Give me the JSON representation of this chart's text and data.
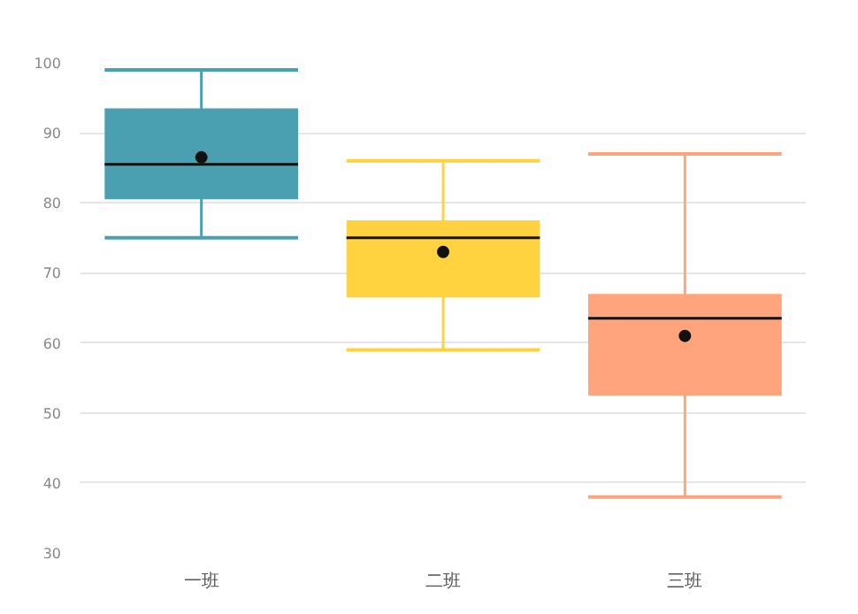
{
  "chart_data": {
    "type": "box",
    "categories": [
      "一班",
      "二班",
      "三班"
    ],
    "colors": [
      "#4a9fb0",
      "#ffd23f",
      "#ffa47c"
    ],
    "boxes": [
      {
        "low": 75,
        "q1": 80.5,
        "median": 85.5,
        "q3": 93.5,
        "high": 99,
        "mean": 86.5
      },
      {
        "low": 59,
        "q1": 66.5,
        "median": 75,
        "q3": 77.5,
        "high": 86,
        "mean": 73
      },
      {
        "low": 38,
        "q1": 52.5,
        "median": 63.5,
        "q3": 67,
        "high": 87,
        "mean": 61
      }
    ],
    "ylim": [
      30,
      100
    ],
    "yticks": [
      30,
      40,
      50,
      60,
      70,
      80,
      90,
      100
    ],
    "grid": "y"
  }
}
